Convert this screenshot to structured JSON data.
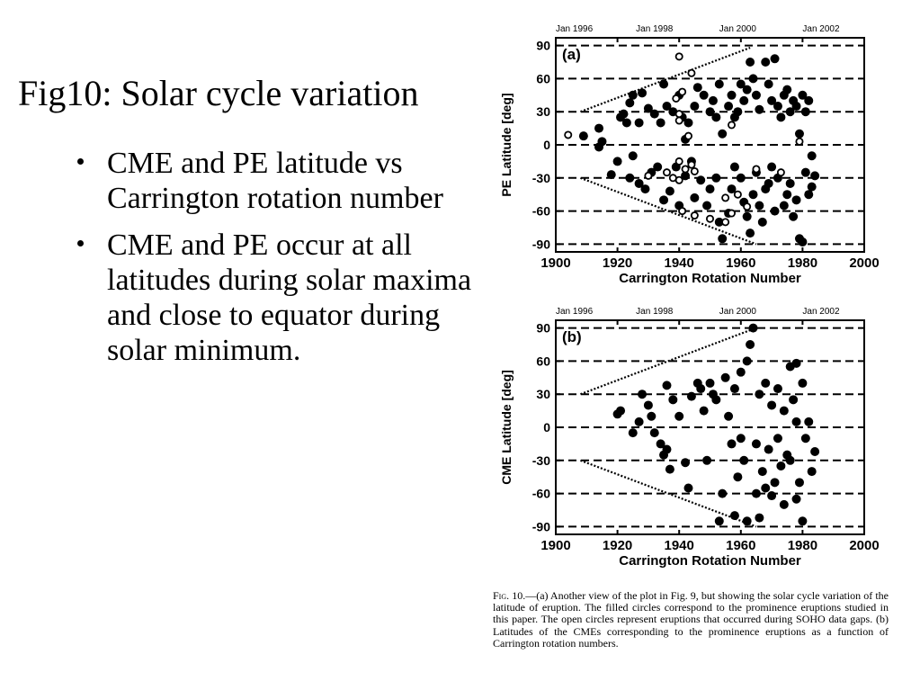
{
  "slide": {
    "title": "Fig10: Solar cycle variation",
    "bullets": [
      "CME and PE latitude vs Carrington rotation number",
      "CME and PE occur at all latitudes during solar maxima and close to equator during solar minimum."
    ]
  },
  "caption": {
    "label": "Fig. 10.",
    "text": "—(a) Another view of the plot in Fig. 9, but showing the solar cycle variation of the latitude of eruption. The filled circles correspond to the prominence eruptions studied in this paper. The open circles represent eruptions that occurred during SOHO data gaps. (b) Latitudes of the CMEs corresponding to the prominence eruptions as a function of Carrington rotation numbers."
  },
  "chart_data": [
    {
      "type": "scatter",
      "panel_label": "(a)",
      "xlabel": "Carrington Rotation Number",
      "ylabel": "PE Latitude [deg]",
      "xlim": [
        1900,
        2000
      ],
      "ylim": [
        -97,
        97
      ],
      "xticks": [
        1900,
        1920,
        1940,
        1960,
        1980,
        2000
      ],
      "yticks": [
        90,
        60,
        30,
        0,
        -30,
        -60,
        -90
      ],
      "top_axis_labels": [
        {
          "label": "Jan 1996",
          "x": 1906
        },
        {
          "label": "Jan 1998",
          "x": 1932
        },
        {
          "label": "Jan 2000",
          "x": 1959
        },
        {
          "label": "Jan 2002",
          "x": 1986
        }
      ],
      "grid": "dashed horizontal at y ticks",
      "envelope_lines": [
        [
          [
            1908,
            30
          ],
          [
            1963,
            88
          ]
        ],
        [
          [
            1908,
            -30
          ],
          [
            1965,
            -90
          ]
        ]
      ],
      "series": [
        {
          "marker": "filled",
          "points": [
            [
              1909,
              8
            ],
            [
              1914,
              15
            ],
            [
              1914,
              -2
            ],
            [
              1915,
              3
            ],
            [
              1918,
              -27
            ],
            [
              1921,
              25
            ],
            [
              1922,
              28
            ],
            [
              1923,
              20
            ],
            [
              1924,
              38
            ],
            [
              1925,
              45
            ],
            [
              1927,
              20
            ],
            [
              1928,
              47
            ],
            [
              1930,
              33
            ],
            [
              1932,
              28
            ],
            [
              1934,
              20
            ],
            [
              1935,
              55
            ],
            [
              1936,
              35
            ],
            [
              1938,
              30
            ],
            [
              1940,
              45
            ],
            [
              1941,
              25
            ],
            [
              1942,
              5
            ],
            [
              1943,
              20
            ],
            [
              1945,
              35
            ],
            [
              1946,
              52
            ],
            [
              1948,
              45
            ],
            [
              1950,
              30
            ],
            [
              1951,
              40
            ],
            [
              1952,
              25
            ],
            [
              1953,
              55
            ],
            [
              1954,
              10
            ],
            [
              1956,
              35
            ],
            [
              1957,
              45
            ],
            [
              1958,
              25
            ],
            [
              1959,
              30
            ],
            [
              1960,
              55
            ],
            [
              1961,
              40
            ],
            [
              1962,
              50
            ],
            [
              1963,
              75
            ],
            [
              1964,
              60
            ],
            [
              1965,
              45
            ],
            [
              1966,
              32
            ],
            [
              1968,
              75
            ],
            [
              1969,
              55
            ],
            [
              1970,
              40
            ],
            [
              1971,
              78
            ],
            [
              1972,
              35
            ],
            [
              1973,
              25
            ],
            [
              1974,
              45
            ],
            [
              1975,
              50
            ],
            [
              1976,
              30
            ],
            [
              1977,
              40
            ],
            [
              1978,
              35
            ],
            [
              1979,
              10
            ],
            [
              1980,
              45
            ],
            [
              1981,
              30
            ],
            [
              1982,
              40
            ],
            [
              1983,
              -10
            ],
            [
              1920,
              -15
            ],
            [
              1924,
              -30
            ],
            [
              1925,
              -10
            ],
            [
              1927,
              -35
            ],
            [
              1929,
              -40
            ],
            [
              1931,
              -25
            ],
            [
              1933,
              -20
            ],
            [
              1935,
              -50
            ],
            [
              1937,
              -42
            ],
            [
              1939,
              -20
            ],
            [
              1940,
              -55
            ],
            [
              1942,
              -28
            ],
            [
              1944,
              -15
            ],
            [
              1945,
              -48
            ],
            [
              1947,
              -32
            ],
            [
              1949,
              -55
            ],
            [
              1950,
              -40
            ],
            [
              1952,
              -30
            ],
            [
              1953,
              -70
            ],
            [
              1954,
              -85
            ],
            [
              1956,
              -62
            ],
            [
              1957,
              -40
            ],
            [
              1958,
              -20
            ],
            [
              1960,
              -30
            ],
            [
              1961,
              -52
            ],
            [
              1962,
              -65
            ],
            [
              1963,
              -80
            ],
            [
              1964,
              -45
            ],
            [
              1965,
              -25
            ],
            [
              1966,
              -55
            ],
            [
              1967,
              -70
            ],
            [
              1968,
              -40
            ],
            [
              1969,
              -35
            ],
            [
              1970,
              -20
            ],
            [
              1971,
              -60
            ],
            [
              1972,
              -30
            ],
            [
              1974,
              -55
            ],
            [
              1975,
              -45
            ],
            [
              1976,
              -35
            ],
            [
              1977,
              -65
            ],
            [
              1978,
              -50
            ],
            [
              1979,
              -85
            ],
            [
              1980,
              -88
            ],
            [
              1981,
              -25
            ],
            [
              1982,
              -45
            ],
            [
              1983,
              -38
            ],
            [
              1984,
              -28
            ]
          ]
        },
        {
          "marker": "open",
          "points": [
            [
              1904,
              9
            ],
            [
              1940,
              80
            ],
            [
              1944,
              65
            ],
            [
              1941,
              48
            ],
            [
              1939,
              42
            ],
            [
              1940,
              28
            ],
            [
              1940,
              22
            ],
            [
              1943,
              8
            ],
            [
              1957,
              18
            ],
            [
              1979,
              3
            ],
            [
              1930,
              -28
            ],
            [
              1936,
              -25
            ],
            [
              1938,
              -30
            ],
            [
              1940,
              -15
            ],
            [
              1942,
              -22
            ],
            [
              1944,
              -18
            ],
            [
              1945,
              -24
            ],
            [
              1955,
              -48
            ],
            [
              1957,
              -62
            ],
            [
              1959,
              -45
            ],
            [
              1962,
              -56
            ],
            [
              1965,
              -22
            ],
            [
              1973,
              -25
            ],
            [
              1941,
              -60
            ],
            [
              1945,
              -64
            ],
            [
              1955,
              -70
            ],
            [
              1950,
              -67
            ],
            [
              1940,
              -32
            ]
          ]
        }
      ]
    },
    {
      "type": "scatter",
      "panel_label": "(b)",
      "xlabel": "Carrington Rotation Number",
      "ylabel": "CME Latitude [deg]",
      "xlim": [
        1900,
        2000
      ],
      "ylim": [
        -97,
        97
      ],
      "xticks": [
        1900,
        1920,
        1940,
        1960,
        1980,
        2000
      ],
      "yticks": [
        90,
        60,
        30,
        0,
        -30,
        -60,
        -90
      ],
      "top_axis_labels": [
        {
          "label": "Jan 1996",
          "x": 1906
        },
        {
          "label": "Jan 1998",
          "x": 1932
        },
        {
          "label": "Jan 2000",
          "x": 1959
        },
        {
          "label": "Jan 2002",
          "x": 1986
        }
      ],
      "grid": "dashed horizontal at y ticks",
      "envelope_lines": [
        [
          [
            1908,
            30
          ],
          [
            1963,
            88
          ]
        ],
        [
          [
            1908,
            -30
          ],
          [
            1965,
            -90
          ]
        ]
      ],
      "series": [
        {
          "marker": "filled",
          "points": [
            [
              1920,
              12
            ],
            [
              1921,
              15
            ],
            [
              1925,
              -5
            ],
            [
              1927,
              5
            ],
            [
              1928,
              30
            ],
            [
              1930,
              20
            ],
            [
              1931,
              10
            ],
            [
              1932,
              -5
            ],
            [
              1934,
              -15
            ],
            [
              1935,
              -25
            ],
            [
              1936,
              -20
            ],
            [
              1937,
              -38
            ],
            [
              1936,
              38
            ],
            [
              1938,
              25
            ],
            [
              1940,
              10
            ],
            [
              1942,
              -32
            ],
            [
              1943,
              -55
            ],
            [
              1944,
              28
            ],
            [
              1946,
              40
            ],
            [
              1947,
              35
            ],
            [
              1948,
              15
            ],
            [
              1949,
              -30
            ],
            [
              1950,
              40
            ],
            [
              1951,
              30
            ],
            [
              1952,
              25
            ],
            [
              1953,
              -85
            ],
            [
              1954,
              -60
            ],
            [
              1955,
              45
            ],
            [
              1956,
              10
            ],
            [
              1957,
              -15
            ],
            [
              1958,
              35
            ],
            [
              1959,
              -45
            ],
            [
              1960,
              50
            ],
            [
              1961,
              -30
            ],
            [
              1962,
              60
            ],
            [
              1963,
              75
            ],
            [
              1964,
              90
            ],
            [
              1965,
              -60
            ],
            [
              1966,
              -82
            ],
            [
              1967,
              -40
            ],
            [
              1968,
              40
            ],
            [
              1969,
              -20
            ],
            [
              1970,
              20
            ],
            [
              1971,
              -50
            ],
            [
              1972,
              35
            ],
            [
              1973,
              -35
            ],
            [
              1974,
              15
            ],
            [
              1975,
              -25
            ],
            [
              1976,
              55
            ],
            [
              1977,
              25
            ],
            [
              1978,
              -65
            ],
            [
              1979,
              -50
            ],
            [
              1980,
              40
            ],
            [
              1981,
              -10
            ],
            [
              1982,
              5
            ],
            [
              1983,
              -40
            ],
            [
              1984,
              -22
            ],
            [
              1962,
              -85
            ],
            [
              1958,
              -80
            ],
            [
              1966,
              30
            ],
            [
              1972,
              -10
            ],
            [
              1976,
              -30
            ],
            [
              1978,
              5
            ],
            [
              1980,
              -85
            ],
            [
              1978,
              58
            ],
            [
              1960,
              -10
            ],
            [
              1965,
              -15
            ],
            [
              1968,
              -55
            ],
            [
              1970,
              -62
            ],
            [
              1974,
              -70
            ]
          ]
        }
      ]
    }
  ]
}
